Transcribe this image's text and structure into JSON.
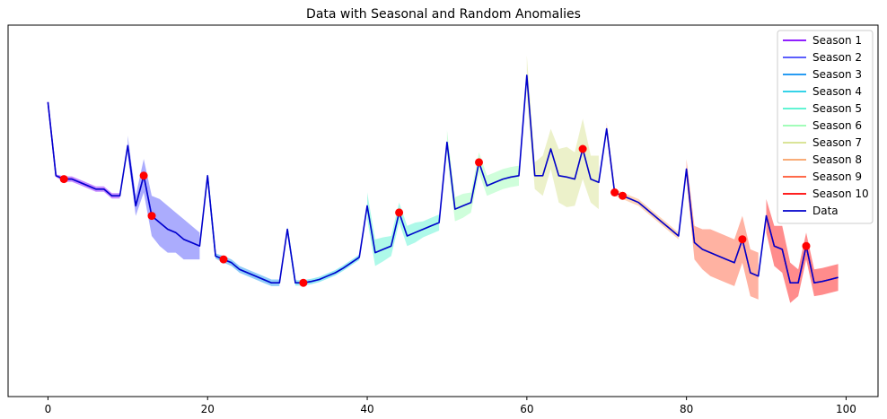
{
  "chart_data": {
    "type": "line",
    "title": "Data with Seasonal and Random Anomalies",
    "xlabel": "",
    "ylabel": "",
    "xlim": [
      -5,
      104
    ],
    "ylim": [
      -3.2,
      2.35
    ],
    "x_ticks": [
      0,
      20,
      40,
      60,
      80,
      100
    ],
    "grid": false,
    "legend_position": "top-right",
    "data_series": {
      "name": "Data",
      "color": "#0000cc",
      "x": [
        0,
        1,
        2,
        3,
        4,
        5,
        6,
        7,
        8,
        9,
        10,
        11,
        12,
        13,
        14,
        15,
        16,
        17,
        18,
        19,
        20,
        21,
        22,
        23,
        24,
        25,
        26,
        27,
        28,
        29,
        30,
        31,
        32,
        33,
        34,
        35,
        36,
        37,
        38,
        39,
        40,
        41,
        42,
        43,
        44,
        45,
        46,
        47,
        48,
        49,
        50,
        51,
        52,
        53,
        54,
        55,
        56,
        57,
        58,
        59,
        60,
        61,
        62,
        63,
        64,
        65,
        66,
        67,
        68,
        69,
        70,
        71,
        72,
        73,
        74,
        75,
        76,
        77,
        78,
        79,
        80,
        81,
        82,
        83,
        84,
        85,
        86,
        87,
        88,
        89,
        90,
        91,
        92,
        93,
        94,
        95,
        96,
        97,
        98,
        99
      ],
      "y": [
        1.2,
        0.1,
        0.05,
        0.05,
        0.0,
        -0.05,
        -0.1,
        -0.1,
        -0.2,
        -0.2,
        0.55,
        -0.35,
        0.1,
        -0.5,
        -0.6,
        -0.7,
        -0.75,
        -0.85,
        -0.9,
        -0.95,
        0.1,
        -1.1,
        -1.15,
        -1.2,
        -1.3,
        -1.35,
        -1.4,
        -1.45,
        -1.5,
        -1.5,
        -0.7,
        -1.5,
        -1.5,
        -1.48,
        -1.45,
        -1.4,
        -1.35,
        -1.28,
        -1.2,
        -1.12,
        -0.35,
        -1.05,
        -1.0,
        -0.95,
        -0.45,
        -0.8,
        -0.75,
        -0.7,
        -0.65,
        -0.6,
        0.6,
        -0.4,
        -0.35,
        -0.3,
        0.3,
        -0.05,
        0.0,
        0.05,
        0.08,
        0.1,
        1.6,
        0.1,
        0.1,
        0.5,
        0.1,
        0.08,
        0.05,
        0.5,
        0.05,
        0.0,
        0.8,
        -0.15,
        -0.2,
        -0.25,
        -0.3,
        -0.4,
        -0.5,
        -0.6,
        -0.7,
        -0.8,
        0.2,
        -0.9,
        -1.0,
        -1.05,
        -1.1,
        -1.15,
        -1.2,
        -0.85,
        -1.35,
        -1.4,
        -0.5,
        -0.95,
        -1.0,
        -1.5,
        -1.5,
        -0.95,
        -1.5,
        -1.48,
        -1.45,
        -1.42
      ]
    },
    "seasons": [
      {
        "name": "Season 1",
        "color": "#8000ff",
        "start": 0,
        "end": 9,
        "band": [
          0.0,
          0.02,
          0.04,
          0.04,
          0.04,
          0.04,
          0.04,
          0.04,
          0.04,
          0.04
        ]
      },
      {
        "name": "Season 2",
        "color": "#4448fb",
        "start": 10,
        "end": 19,
        "band": [
          0.15,
          0.15,
          0.25,
          0.3,
          0.35,
          0.35,
          0.3,
          0.3,
          0.25,
          0.2
        ]
      },
      {
        "name": "Season 3",
        "color": "#0a8ef0",
        "start": 20,
        "end": 29,
        "band": [
          0.04,
          0.04,
          0.05,
          0.05,
          0.05,
          0.05,
          0.05,
          0.05,
          0.05,
          0.05
        ]
      },
      {
        "name": "Season 4",
        "color": "#18cde5",
        "start": 30,
        "end": 39,
        "band": [
          0.04,
          0.04,
          0.04,
          0.04,
          0.04,
          0.04,
          0.04,
          0.04,
          0.04,
          0.04
        ]
      },
      {
        "name": "Season 5",
        "color": "#4cf2ce",
        "start": 40,
        "end": 49,
        "band": [
          0.2,
          0.2,
          0.18,
          0.15,
          0.15,
          0.15,
          0.15,
          0.12,
          0.12,
          0.12
        ]
      },
      {
        "name": "Season 6",
        "color": "#94fdaf",
        "start": 50,
        "end": 59,
        "band": [
          0.18,
          0.18,
          0.18,
          0.15,
          0.15,
          0.15,
          0.15,
          0.15,
          0.15,
          0.15
        ]
      },
      {
        "name": "Season 7",
        "color": "#d4e08a",
        "start": 60,
        "end": 69,
        "band": [
          0.3,
          0.2,
          0.3,
          0.3,
          0.4,
          0.45,
          0.4,
          0.45,
          0.35,
          0.4
        ]
      },
      {
        "name": "Season 8",
        "color": "#f8a064",
        "start": 70,
        "end": 79,
        "band": [
          0.1,
          0.05,
          0.05,
          0.05,
          0.05,
          0.05,
          0.05,
          0.05,
          0.05,
          0.05
        ]
      },
      {
        "name": "Season 9",
        "color": "#ff5530",
        "start": 80,
        "end": 89,
        "band": [
          0.15,
          0.25,
          0.3,
          0.35,
          0.35,
          0.35,
          0.35,
          0.35,
          0.35,
          0.35
        ]
      },
      {
        "name": "Season 10",
        "color": "#ff0000",
        "start": 90,
        "end": 99,
        "band": [
          0.25,
          0.3,
          0.35,
          0.3,
          0.2,
          0.2,
          0.2,
          0.2,
          0.2,
          0.2
        ]
      }
    ],
    "anomalies": {
      "color": "#ff0000",
      "x": [
        2,
        12,
        13,
        22,
        32,
        44,
        54,
        67,
        71,
        72,
        87,
        95
      ],
      "y": [
        0.05,
        0.1,
        -0.5,
        -1.15,
        -1.5,
        -0.45,
        0.3,
        0.5,
        -0.15,
        -0.2,
        -0.85,
        -0.95
      ]
    }
  }
}
